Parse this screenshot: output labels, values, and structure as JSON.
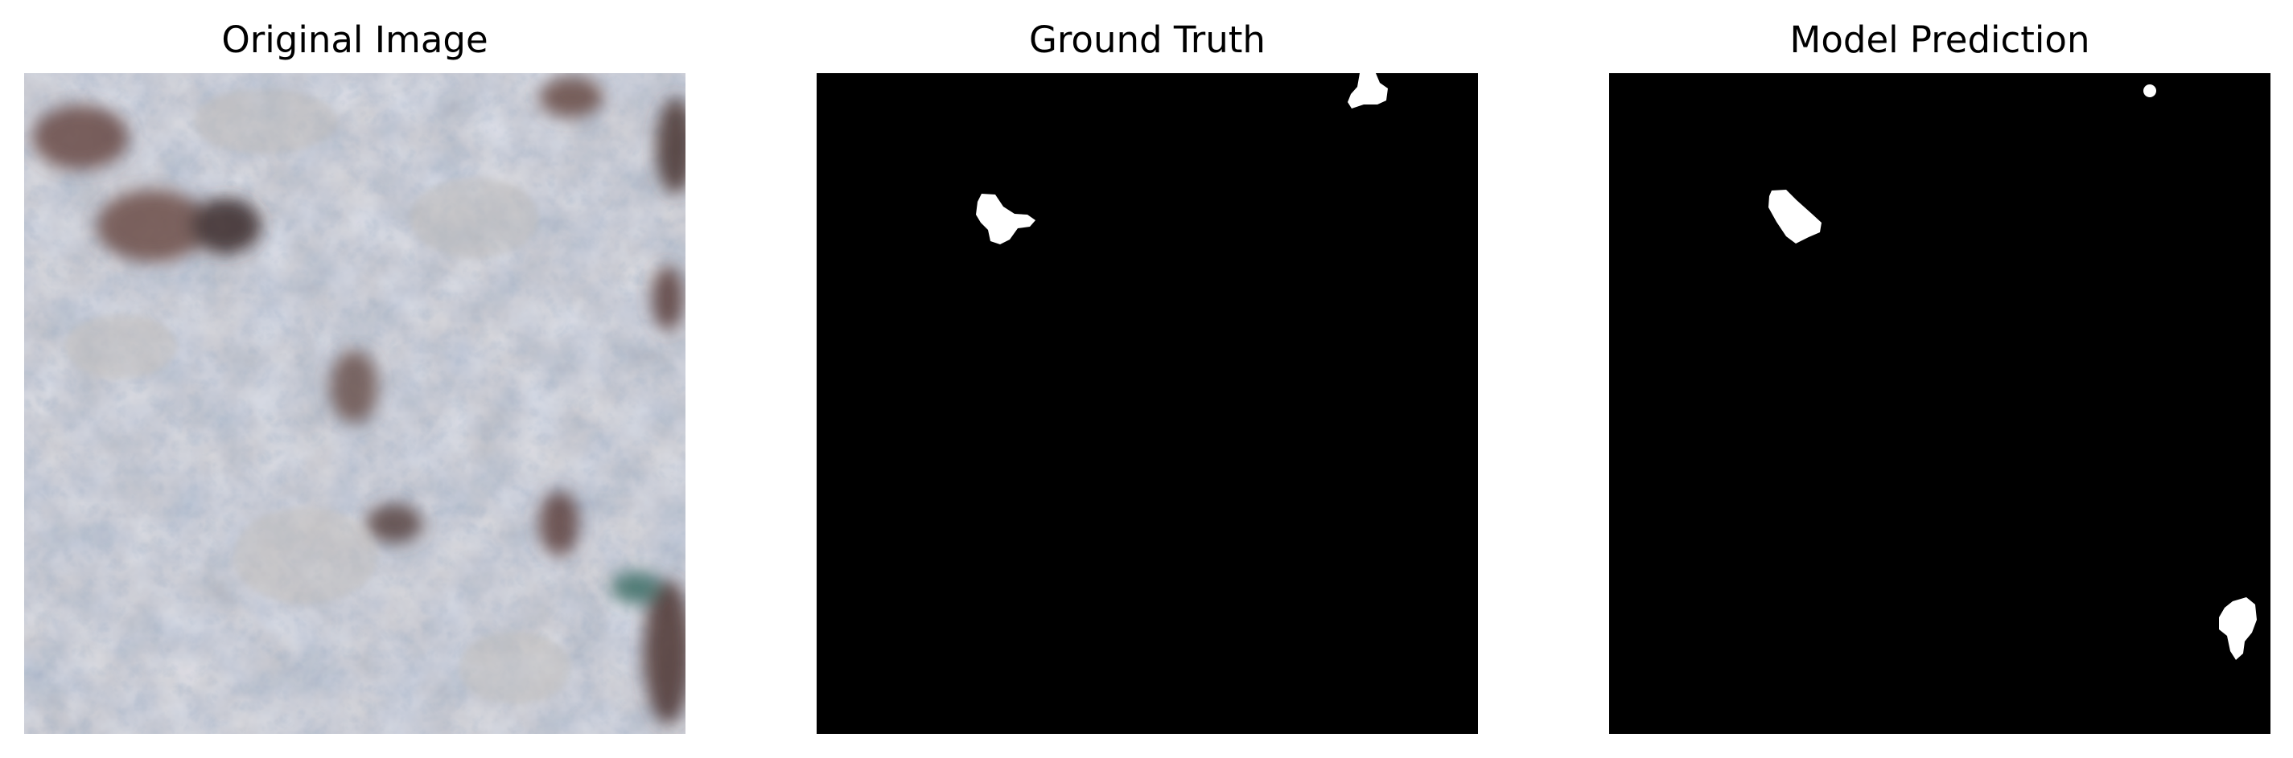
{
  "figure": {
    "panels": [
      {
        "title": "Original Image",
        "content": "rgb texture image"
      },
      {
        "title": "Ground Truth",
        "content": "binary mask"
      },
      {
        "title": "Model Prediction",
        "content": "binary mask"
      }
    ]
  },
  "colors": {
    "background": "#ffffff",
    "mask_background": "#000000",
    "mask_foreground": "#ffffff",
    "texture_base": "#8f9aa4",
    "texture_light": "#b7b6b4",
    "texture_blue": "#5d7590",
    "texture_brown": "#5a3b37"
  }
}
